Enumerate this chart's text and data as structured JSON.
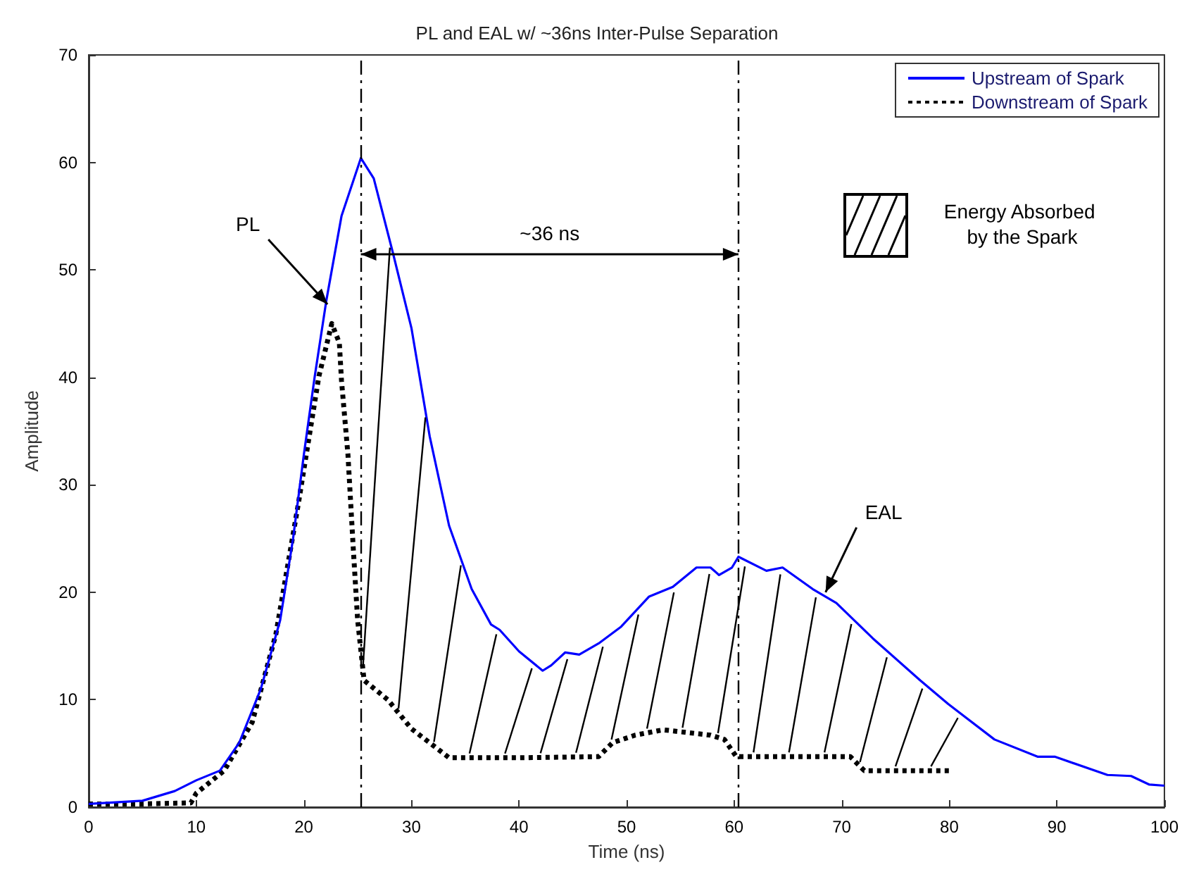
{
  "chart_data": {
    "type": "line",
    "title": "PL and EAL w/ ~36ns Inter-Pulse Separation",
    "xlabel": "Time (ns)",
    "ylabel": "Amplitude",
    "xlim": [
      0,
      100
    ],
    "ylim": [
      0,
      70
    ],
    "xticks": [
      0,
      10,
      20,
      30,
      40,
      50,
      60,
      70,
      80,
      90,
      100
    ],
    "yticks": [
      0,
      10,
      20,
      30,
      40,
      50,
      60,
      70
    ],
    "grid": false,
    "legend": "top right",
    "marker": "none",
    "series": [
      {
        "name": "Upstream of Spark",
        "color": "#0000ff",
        "line_style": "solid",
        "x": [
          0,
          5,
          8,
          10,
          12.2,
          14,
          16,
          17.8,
          19,
          20,
          21,
          22.1,
          23.5,
          25.3,
          26.5,
          28.3,
          30,
          31.7,
          33.5,
          35.6,
          37.4,
          38.2,
          40,
          42.2,
          43,
          44.3,
          45.6,
          47.5,
          49.5,
          52.1,
          54.3,
          56.5,
          57.8,
          58.6,
          59.8,
          60.4,
          63,
          64.5,
          67.3,
          69.5,
          72.9,
          77.3,
          79.9,
          84.2,
          88.2,
          89.8,
          94.7,
          96.9,
          98.6,
          100
        ],
        "values": [
          0.3,
          0.6,
          1.5,
          2.5,
          3.4,
          6,
          11,
          17.4,
          25,
          32.8,
          40,
          47.2,
          55,
          60.4,
          58.5,
          51.5,
          44.6,
          34.5,
          26.2,
          20.3,
          17,
          16.5,
          14.5,
          12.7,
          13.2,
          14.4,
          14.2,
          15.3,
          16.8,
          19.6,
          20.5,
          22.3,
          22.3,
          21.6,
          22.3,
          23.3,
          22,
          22.3,
          20.3,
          19,
          15.7,
          11.8,
          9.6,
          6.3,
          4.7,
          4.7,
          3,
          2.9,
          2.1,
          2
        ]
      },
      {
        "name": "Downstream of Spark",
        "color": "#000000",
        "line_style": "dotted",
        "x": [
          0,
          5,
          9.5,
          10,
          12.6,
          15.2,
          17.4,
          19.5,
          21.4,
          22.6,
          23.3,
          23.5,
          24.1,
          24.6,
          25,
          25.6,
          27.8,
          30,
          33.5,
          40,
          47.4,
          48.7,
          50.8,
          53.4,
          57.8,
          59.1,
          60.2,
          65,
          70.8,
          72.1,
          76,
          80.3
        ],
        "values": [
          0.3,
          0.3,
          0.4,
          1.3,
          3.4,
          7.9,
          16.1,
          28.3,
          40.1,
          45,
          43.2,
          39.7,
          32.8,
          24,
          17.4,
          11.8,
          10,
          7.3,
          4.6,
          4.6,
          4.7,
          6,
          6.7,
          7.2,
          6.7,
          6.3,
          4.7,
          4.7,
          4.7,
          3.4,
          3.4,
          3.4
        ]
      }
    ],
    "ref_lines": [
      {
        "axis": "x",
        "value": 25.3,
        "color": "#000000",
        "line_style": "dashed"
      },
      {
        "axis": "x",
        "value": 60.4,
        "color": "#000000",
        "line_style": "dashed"
      }
    ],
    "annotations": [
      {
        "text": "PL",
        "x": 22.2,
        "y": 46.8
      },
      "~36 ns",
      {
        "text": "EAL",
        "x": 68.5,
        "y": 20
      },
      "Energy Absorbed by the Spark"
    ]
  }
}
